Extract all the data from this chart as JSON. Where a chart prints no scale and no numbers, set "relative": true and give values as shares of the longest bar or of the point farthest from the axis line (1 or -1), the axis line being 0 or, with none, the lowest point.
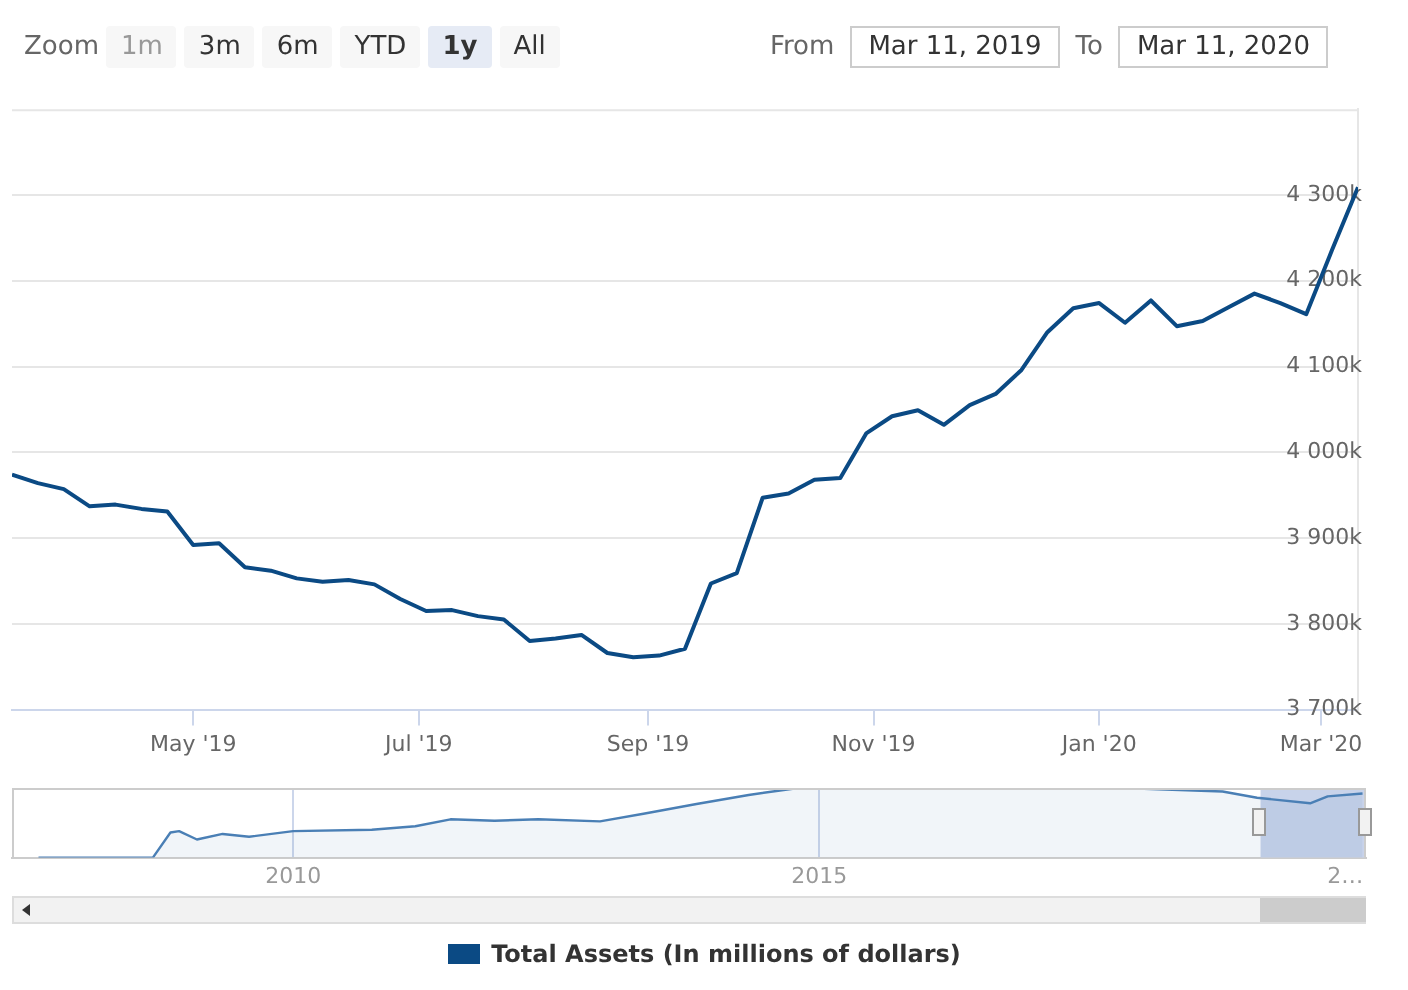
{
  "chart_data": [
    {
      "type": "line",
      "legend": "bottom",
      "grid": "y",
      "marker": "none",
      "annotations": [
        "Zoom",
        "1m",
        "3m",
        "6m",
        "YTD",
        "1y",
        "All",
        "From",
        "Mar 11, 2019",
        "To",
        "Mar 11, 2020"
      ],
      "x": [
        "2019-03-13",
        "2019-03-20",
        "2019-03-27",
        "2019-04-03",
        "2019-04-10",
        "2019-04-17",
        "2019-04-24",
        "2019-05-01",
        "2019-05-08",
        "2019-05-15",
        "2019-05-22",
        "2019-05-29",
        "2019-06-05",
        "2019-06-12",
        "2019-06-19",
        "2019-06-26",
        "2019-07-03",
        "2019-07-10",
        "2019-07-17",
        "2019-07-24",
        "2019-07-31",
        "2019-08-07",
        "2019-08-14",
        "2019-08-21",
        "2019-08-28",
        "2019-09-04",
        "2019-09-11",
        "2019-09-18",
        "2019-09-25",
        "2019-10-02",
        "2019-10-09",
        "2019-10-16",
        "2019-10-23",
        "2019-10-30",
        "2019-11-06",
        "2019-11-13",
        "2019-11-20",
        "2019-11-27",
        "2019-12-04",
        "2019-12-11",
        "2019-12-18",
        "2019-12-25",
        "2020-01-01",
        "2020-01-08",
        "2020-01-15",
        "2020-01-22",
        "2020-01-29",
        "2020-02-05",
        "2020-02-12",
        "2020-02-19",
        "2020-02-26",
        "2020-03-04",
        "2020-03-11"
      ],
      "series": [
        {
          "name": "Total Assets (In millions of dollars)",
          "color": "#0b4a84",
          "values": [
            3974000,
            3964000,
            3957000,
            3937000,
            3939000,
            3934000,
            3931000,
            3892000,
            3894000,
            3866000,
            3862000,
            3853000,
            3849000,
            3851000,
            3846000,
            3829000,
            3815000,
            3816000,
            3809000,
            3805000,
            3780000,
            3783000,
            3787000,
            3766000,
            3761000,
            3763000,
            3771000,
            3847000,
            3859000,
            3947000,
            3952000,
            3968000,
            3970000,
            4022000,
            4042000,
            4049000,
            4032000,
            4055000,
            4068000,
            4096000,
            4140000,
            4168000,
            4174000,
            4151000,
            4177000,
            4147000,
            4153000,
            4169000,
            4185000,
            4174000,
            4161000,
            4236000,
            4309000
          ]
        }
      ],
      "xlim": [
        "2019-03-13",
        "2020-03-11"
      ],
      "xticks": [
        {
          "value": "2019-05-01",
          "label": "May '19"
        },
        {
          "value": "2019-07-01",
          "label": "Jul '19"
        },
        {
          "value": "2019-09-01",
          "label": "Sep '19"
        },
        {
          "value": "2019-11-01",
          "label": "Nov '19"
        },
        {
          "value": "2020-01-01",
          "label": "Jan '20"
        },
        {
          "value": "2020-03-01",
          "label": "Mar '20"
        }
      ],
      "ylim": [
        3700000,
        4400000
      ],
      "yticks": [
        {
          "value": 3700000,
          "label": "3 700k"
        },
        {
          "value": 3800000,
          "label": "3 800k"
        },
        {
          "value": 3900000,
          "label": "3 900k"
        },
        {
          "value": 4000000,
          "label": "4 000k"
        },
        {
          "value": 4100000,
          "label": "4 100k"
        },
        {
          "value": 4200000,
          "label": "4 200k"
        },
        {
          "value": 4300000,
          "label": "4 300k"
        }
      ]
    },
    {
      "type": "area",
      "relative": true,
      "grid": "x",
      "x": [
        "2007-08",
        "2008-09",
        "2008-11",
        "2008-12",
        "2009-02",
        "2009-05",
        "2009-08",
        "2010-01",
        "2010-10",
        "2011-03",
        "2011-07",
        "2011-12",
        "2012-05",
        "2012-12",
        "2013-05",
        "2013-11",
        "2014-05",
        "2014-10",
        "2015-01",
        "2015-12",
        "2016-11",
        "2018-02",
        "2018-11",
        "2019-03",
        "2019-09",
        "2019-11",
        "2020-03"
      ],
      "series": [
        {
          "color": "#4a7fb5",
          "values": [
            0,
            0,
            0.36,
            0.38,
            0.26,
            0.34,
            0.3,
            0.38,
            0.4,
            0.45,
            0.55,
            0.53,
            0.55,
            0.52,
            0.63,
            0.77,
            0.9,
            0.99,
            1,
            0.99,
            0.99,
            0.99,
            0.95,
            0.86,
            0.78,
            0.88,
            0.92
          ]
        }
      ],
      "xlim": [
        "2007-05",
        "2020-03-13"
      ],
      "xticks": [
        {
          "value": "2010-01",
          "label": "2010"
        },
        {
          "value": "2015-01",
          "label": "2015"
        },
        {
          "value": "2020-01",
          "label": "2…"
        }
      ],
      "bands": [
        {
          "axis": "x",
          "from": "2019-03-13",
          "to": "2020-03-11",
          "color": "#c8d3ea"
        }
      ]
    }
  ]
}
